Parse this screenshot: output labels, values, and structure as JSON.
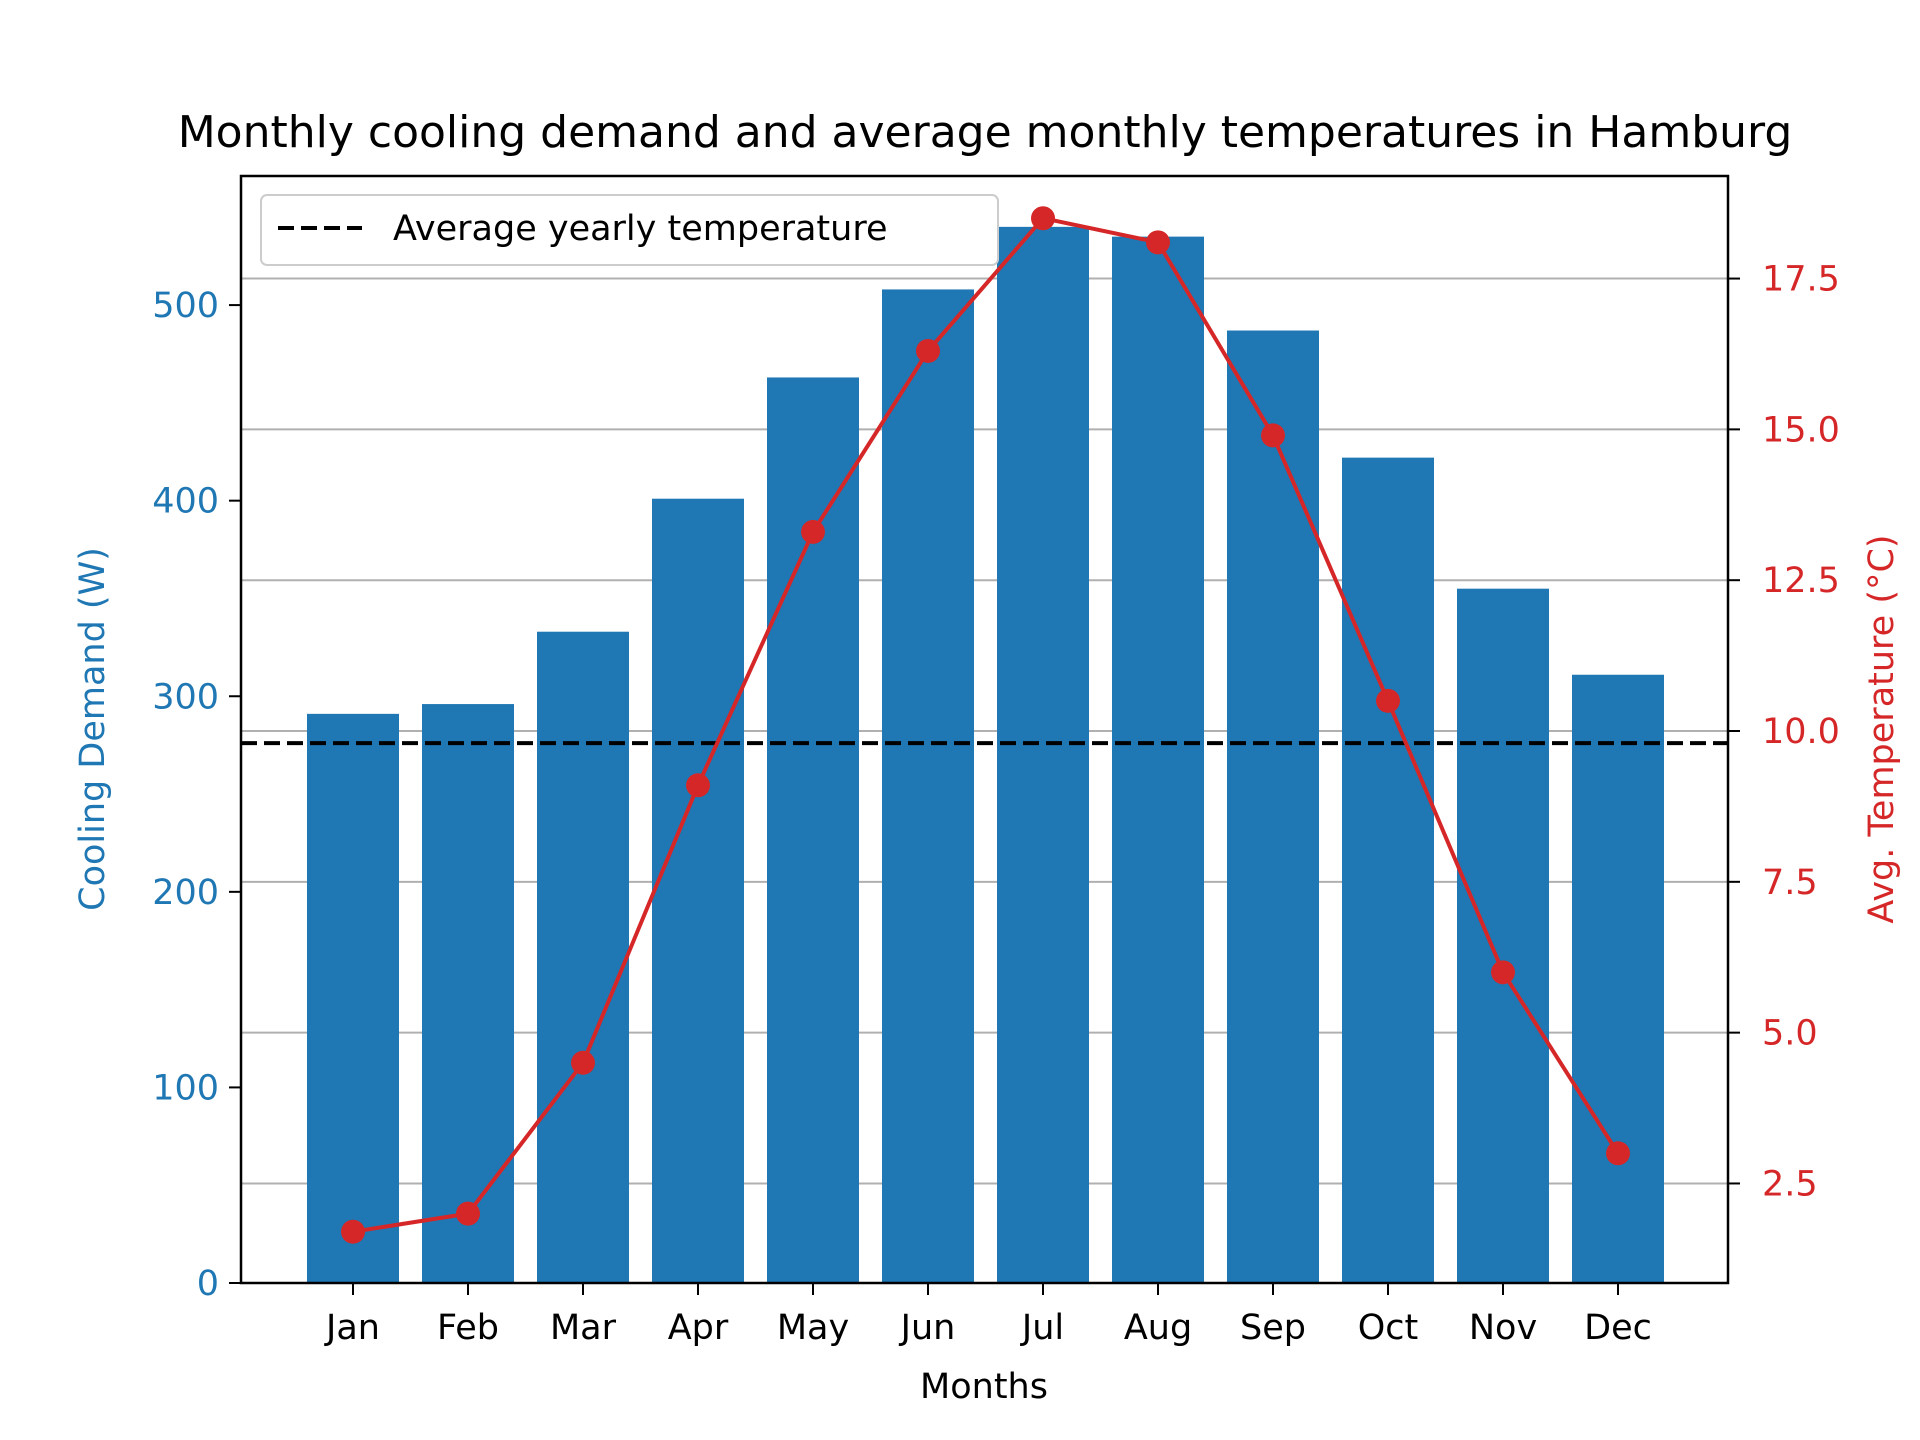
{
  "chart_data": {
    "type": "bar",
    "title": "Monthly cooling demand and average monthly temperatures in Hamburg",
    "xlabel": "Months",
    "categories": [
      "Jan",
      "Feb",
      "Mar",
      "Apr",
      "May",
      "Jun",
      "Jul",
      "Aug",
      "Sep",
      "Oct",
      "Nov",
      "Dec"
    ],
    "series": [
      {
        "type": "bar",
        "axis": "left",
        "color": "#1f77b4",
        "values": [
          291,
          296,
          333,
          401,
          463,
          508,
          540,
          535,
          487,
          422,
          355,
          311
        ]
      },
      {
        "type": "line",
        "axis": "right",
        "color": "#d62728",
        "marker": "circle",
        "values": [
          1.7,
          2.0,
          4.5,
          9.1,
          13.3,
          16.3,
          18.5,
          18.1,
          14.9,
          10.5,
          6.0,
          3.0
        ]
      }
    ],
    "reference_line": {
      "name": "Average yearly temperature",
      "axis": "right",
      "value": 9.8,
      "style": "dashed",
      "color": "#000000"
    },
    "left_axis": {
      "label": "Cooling Demand (W)",
      "color": "#1f77b4",
      "ylim": [
        0,
        566
      ],
      "ticks": [
        0,
        100,
        200,
        300,
        400,
        500
      ],
      "tick_labels": [
        "0",
        "100",
        "200",
        "300",
        "400",
        "500"
      ]
    },
    "right_axis": {
      "label": "Avg. Temperature (°C)",
      "color": "#d62728",
      "ylim": [
        0.85,
        19.2
      ],
      "ticks": [
        2.5,
        5.0,
        7.5,
        10.0,
        12.5,
        15.0,
        17.5
      ],
      "tick_labels": [
        "2.5",
        "5.0",
        "7.5",
        "10.0",
        "12.5",
        "15.0",
        "17.5"
      ]
    },
    "grid": "horizontal, right axis ticks",
    "legend": {
      "location": "upper-left",
      "entries": [
        "Average yearly temperature"
      ]
    }
  }
}
